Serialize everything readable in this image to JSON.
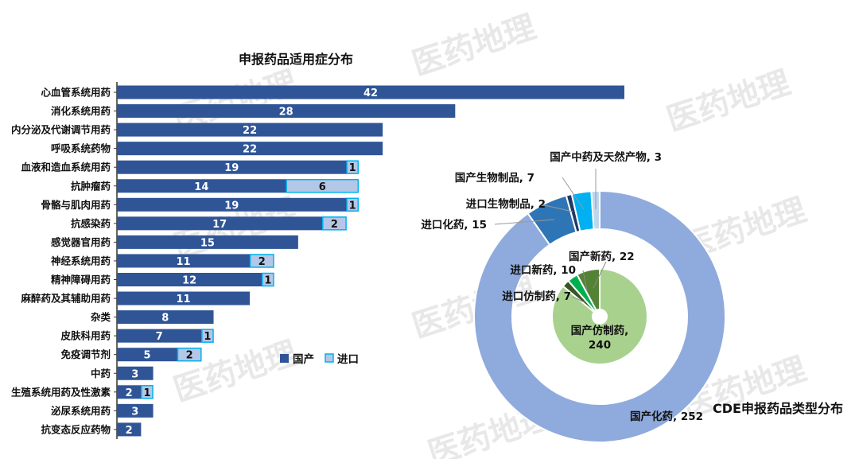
{
  "watermark": "医药地理",
  "chart_data": [
    {
      "type": "bar",
      "orientation": "horizontal-stacked",
      "title": "申报药品适用症分布",
      "categories": [
        "心血管系统用药",
        "消化系统用药",
        "内分泌及代谢调节用药",
        "呼吸系统药物",
        "血液和造血系统用药",
        "抗肿瘤药",
        "骨骼与肌肉用药",
        "抗感染药",
        "感觉器官用药",
        "神经系统用药",
        "精神障碍用药",
        "麻醉药及其辅助用药",
        "杂类",
        "皮肤科用药",
        "免疫调节剂",
        "中药",
        "生殖系统用药及性激素",
        "泌尿系统用药",
        "抗变态反应药物"
      ],
      "series": [
        {
          "name": "国产",
          "color": "#2F5597",
          "values": [
            42,
            28,
            22,
            22,
            19,
            14,
            19,
            17,
            15,
            11,
            12,
            11,
            8,
            7,
            5,
            3,
            2,
            3,
            2
          ]
        },
        {
          "name": "进口",
          "color": "#B4C7E7",
          "border": "#00B0F0",
          "values": [
            0,
            0,
            0,
            0,
            1,
            6,
            1,
            2,
            0,
            2,
            1,
            0,
            0,
            1,
            2,
            0,
            1,
            0,
            0
          ]
        }
      ],
      "legend": "center-right",
      "xlabel": "",
      "ylabel": ""
    },
    {
      "type": "pie",
      "title": "CDE申报药品类型分布",
      "outer_ring": [
        {
          "label": "国产化药",
          "value": 252,
          "color": "#8FAADC"
        },
        {
          "label": "进口化药",
          "value": 15,
          "color": "#2E75B6"
        },
        {
          "label": "进口生物制品",
          "value": 2,
          "color": "#203864"
        },
        {
          "label": "国产生物制品",
          "value": 7,
          "color": "#00B0F0"
        },
        {
          "label": "国产中药及天然产物",
          "value": 3,
          "color": "#BDD7EE"
        }
      ],
      "inner_pie": [
        {
          "label": "国产仿制药",
          "value": 240,
          "color": "#A9D18E"
        },
        {
          "label": "进口仿制药",
          "value": 7,
          "color": "#375623"
        },
        {
          "label": "进口新药",
          "value": 10,
          "color": "#00B050"
        },
        {
          "label": "国产新药",
          "value": 22,
          "color": "#548235"
        }
      ]
    }
  ]
}
